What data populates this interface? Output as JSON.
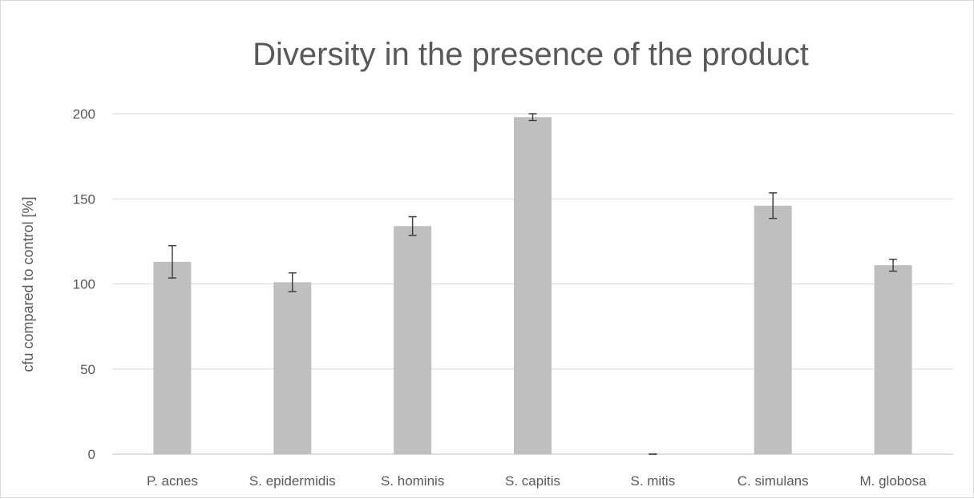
{
  "chart_data": {
    "type": "bar",
    "title": "Diversity in the presence of the product",
    "xlabel": "",
    "ylabel": "cfu compared to control [%]",
    "ylim": [
      0,
      200
    ],
    "yticks": [
      0,
      50,
      100,
      150,
      200
    ],
    "grid": true,
    "legend": "none",
    "categories": [
      "P. acnes",
      "S. epidermidis",
      "S. hominis",
      "S. capitis",
      "S. mitis",
      "C. simulans",
      "M. globosa"
    ],
    "values": [
      113,
      101,
      134,
      198,
      0,
      146,
      111
    ],
    "error": [
      9.5,
      5.5,
      5.5,
      2,
      0,
      7.5,
      3.5
    ],
    "colors": {
      "bar": "#bfbfbf",
      "error": "#404040",
      "grid": "#d9d9d9",
      "text": "#595959"
    }
  }
}
